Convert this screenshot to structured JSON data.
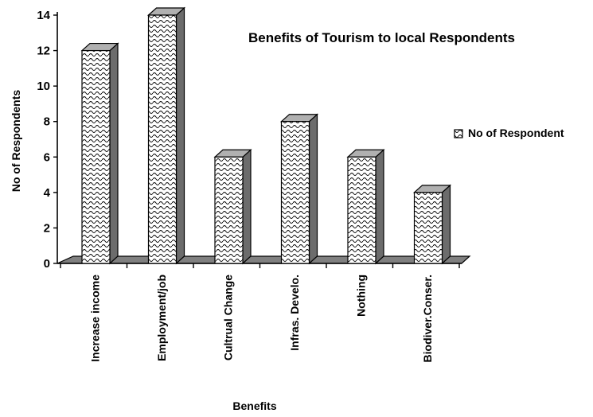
{
  "chart_data": {
    "type": "bar",
    "title": "Benefits of Tourism to local Respondents",
    "xlabel": "Benefits",
    "ylabel": "No of Respondents",
    "categories": [
      "Increase income",
      "Employment/job",
      "Cultrual Change",
      "Infras. Develo.",
      "Nothing",
      "Biodiver.Conser."
    ],
    "series": [
      {
        "name": "No of Respondent",
        "values": [
          12,
          14,
          6,
          8,
          6,
          4
        ]
      }
    ],
    "ylim": [
      0,
      14
    ],
    "yticks": [
      "0",
      "2",
      "4",
      "6",
      "8",
      "10",
      "12",
      "14"
    ],
    "grid": false,
    "legend": "right",
    "style": "3d-bar-wave-pattern",
    "colors": {
      "bar_fill": "#ffffff",
      "bar_pattern": "#000000",
      "bar_top": "#b0b0b0",
      "bar_side": "#6c6c6c",
      "floor": "#808080"
    }
  }
}
